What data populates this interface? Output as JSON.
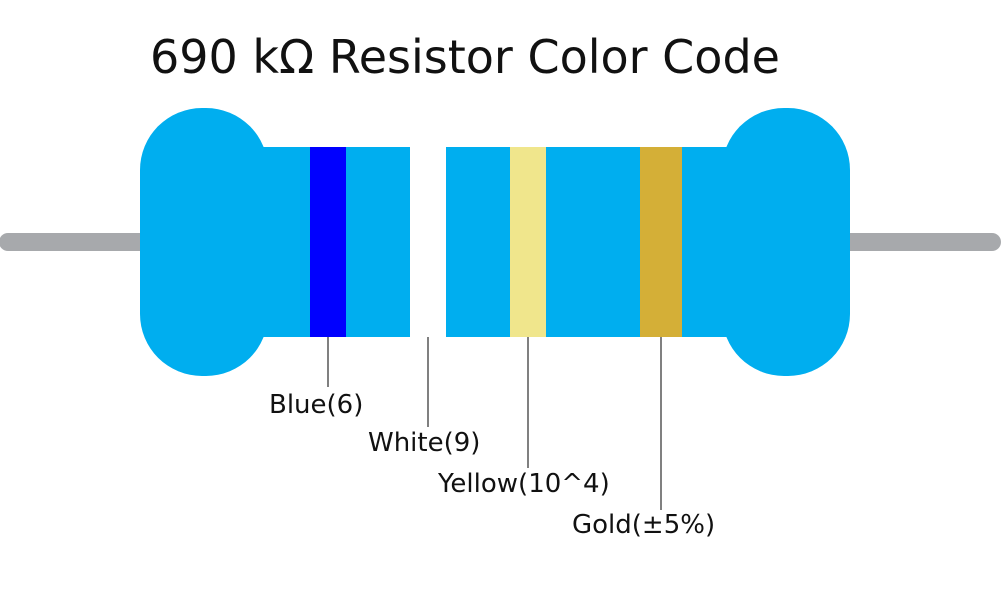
{
  "title": "690 kΩ Resistor Color Code",
  "colors": {
    "body": "#00AEEF",
    "lead": "#A7A9AC",
    "leader_line": "#000000"
  },
  "bands": [
    {
      "label": "Blue(6)",
      "color": "#0000FF"
    },
    {
      "label": "White(9)",
      "color": "#FFFFFF"
    },
    {
      "label": "Yellow(10^4)",
      "color": "#F0E68C"
    },
    {
      "label": "Gold(±5%)",
      "color": "#D4AF37"
    }
  ]
}
